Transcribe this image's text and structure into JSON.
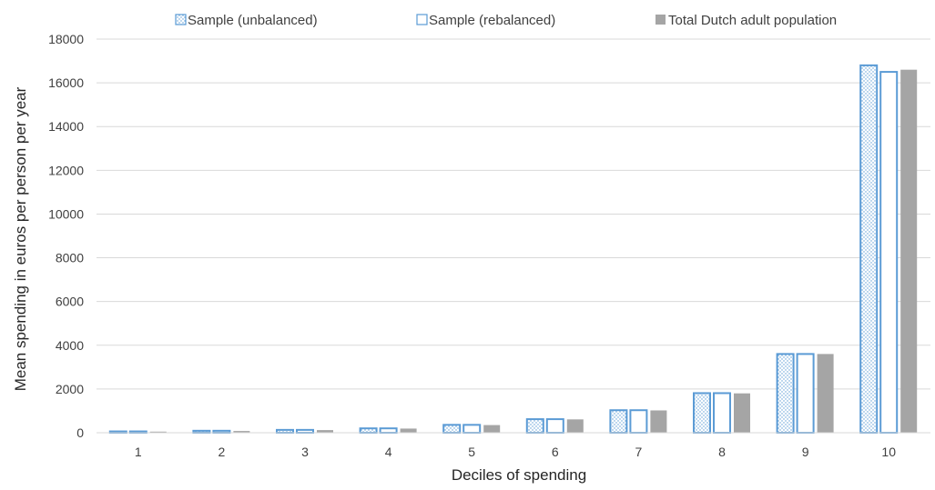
{
  "chart_data": {
    "type": "bar",
    "title": "",
    "xlabel": "Deciles of spending",
    "ylabel": "Mean spending in euros per person per year",
    "categories": [
      "1",
      "2",
      "3",
      "4",
      "5",
      "6",
      "7",
      "8",
      "9",
      "10"
    ],
    "ylim": [
      0,
      18000
    ],
    "yticks": [
      "0",
      "2000",
      "4000",
      "6000",
      "8000",
      "10000",
      "12000",
      "14000",
      "16000",
      "18000"
    ],
    "grid": "horizontal",
    "legend_position": "top",
    "series": [
      {
        "name": "Sample (unbalanced)",
        "style": "dotted",
        "color": "#5b9bd5",
        "values": [
          60,
          90,
          130,
          200,
          360,
          620,
          1030,
          1810,
          3600,
          16800
        ]
      },
      {
        "name": "Sample (rebalanced)",
        "style": "outline",
        "color": "#5b9bd5",
        "values": [
          60,
          90,
          130,
          200,
          360,
          620,
          1030,
          1810,
          3600,
          16500
        ]
      },
      {
        "name": "Total Dutch adult population",
        "style": "solid",
        "color": "#a5a5a5",
        "values": [
          50,
          80,
          120,
          190,
          350,
          610,
          1020,
          1800,
          3600,
          16600
        ]
      }
    ]
  }
}
